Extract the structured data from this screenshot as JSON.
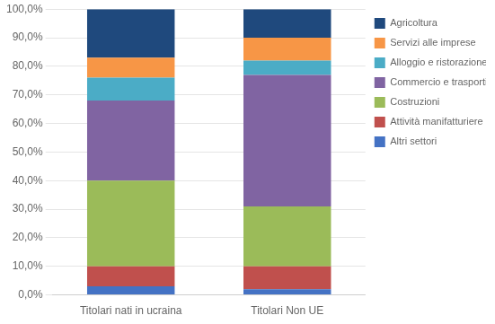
{
  "chart_data": {
    "type": "bar",
    "stacked": true,
    "categories": [
      "Titolari nati in ucraina",
      "Titolari Non UE"
    ],
    "series": [
      {
        "name": "Altri settori",
        "color": "#4472c4",
        "values": [
          3.0,
          2.0
        ]
      },
      {
        "name": "Attività manifatturiere",
        "color": "#c0504d",
        "values": [
          7.0,
          8.0
        ]
      },
      {
        "name": "Costruzioni",
        "color": "#9bbb59",
        "values": [
          30.0,
          21.0
        ]
      },
      {
        "name": "Commercio e trasporti",
        "color": "#8064a2",
        "values": [
          28.0,
          46.0
        ]
      },
      {
        "name": "Alloggio e ristorazione",
        "color": "#4bacc6",
        "values": [
          8.0,
          5.0
        ]
      },
      {
        "name": "Servizi alle imprese",
        "color": "#f79646",
        "values": [
          7.0,
          8.0
        ]
      },
      {
        "name": "Agricoltura",
        "color": "#1f497d",
        "values": [
          17.0,
          10.0
        ]
      }
    ],
    "ylim": [
      0,
      100
    ],
    "yticks": [
      {
        "value": 0,
        "label": "0,0%"
      },
      {
        "value": 10,
        "label": "10,0%"
      },
      {
        "value": 20,
        "label": "20,0%"
      },
      {
        "value": 30,
        "label": "30,0%"
      },
      {
        "value": 40,
        "label": "40,0%"
      },
      {
        "value": 50,
        "label": "50,0%"
      },
      {
        "value": 60,
        "label": "60,0%"
      },
      {
        "value": 70,
        "label": "70,0%"
      },
      {
        "value": 80,
        "label": "80,0%"
      },
      {
        "value": 90,
        "label": "90,0%"
      },
      {
        "value": 100,
        "label": "100,0%"
      }
    ],
    "grid": true,
    "legend": "right"
  }
}
